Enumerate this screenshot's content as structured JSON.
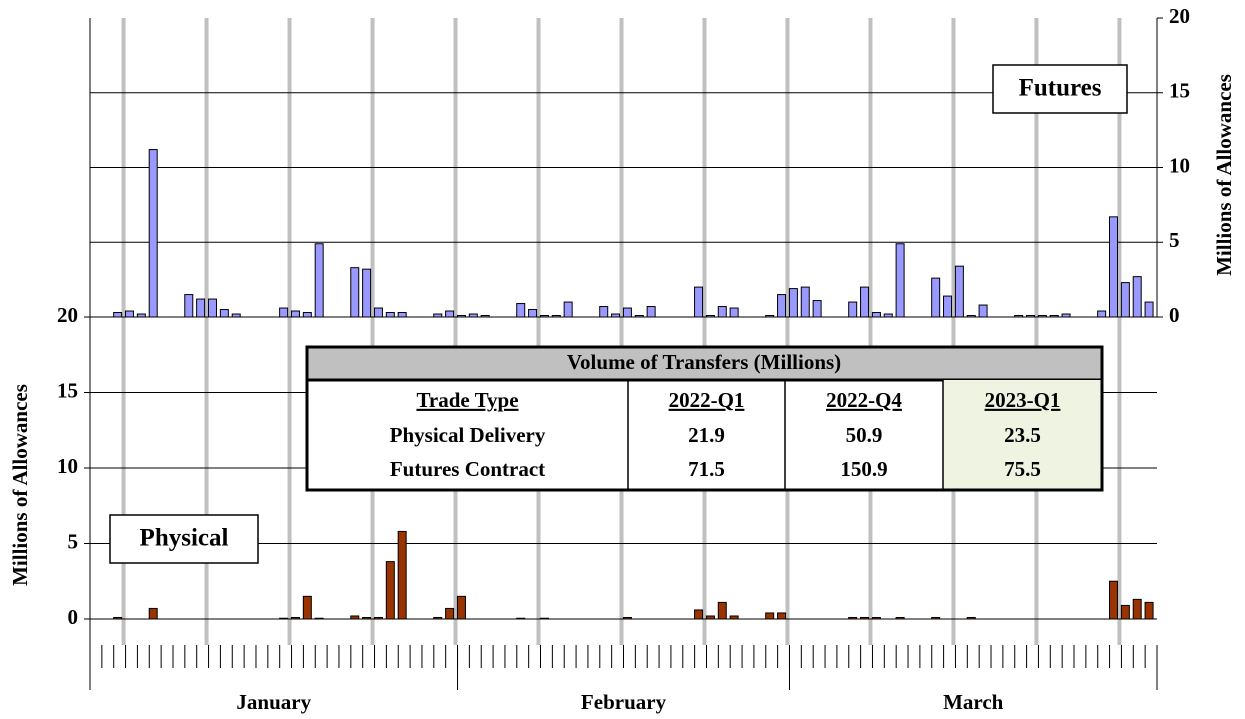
{
  "chart_data": {
    "type": "bar",
    "categories": [
      null,
      null,
      null,
      null,
      null,
      null,
      null,
      null,
      null,
      null,
      null,
      null,
      null,
      null,
      null,
      null,
      null,
      null,
      null,
      null,
      null,
      null,
      null,
      null,
      null,
      null,
      null,
      null,
      null,
      null,
      null,
      null,
      null,
      null,
      null,
      null,
      null,
      null,
      null,
      null,
      null,
      null,
      null,
      null,
      null,
      null,
      null,
      null,
      null,
      null,
      null,
      null,
      null,
      null,
      null,
      null,
      null,
      null,
      null,
      null,
      null,
      null,
      null,
      null,
      null,
      null,
      null,
      null,
      null,
      null,
      null,
      null,
      null,
      null,
      null,
      null,
      null,
      null,
      null,
      null,
      null,
      null,
      null,
      null,
      null,
      null,
      null,
      null,
      null,
      null
    ],
    "groups": [
      {
        "label": "January",
        "count": 31
      },
      {
        "label": "February",
        "count": 28
      },
      {
        "label": "March",
        "count": 31
      }
    ],
    "series": [
      {
        "name": "Futures",
        "color": "#9999ff",
        "axis": "y2",
        "values": [
          0,
          0,
          0.3,
          0.4,
          0.2,
          11.2,
          0,
          0,
          1.5,
          1.2,
          1.2,
          0.5,
          0.2,
          0,
          0,
          0,
          0.6,
          0.4,
          0.3,
          4.9,
          0,
          0,
          3.3,
          3.2,
          0.6,
          0.3,
          0.3,
          0,
          0,
          0.2,
          0.4,
          0.1,
          0.2,
          0.1,
          0,
          0,
          0.9,
          0.5,
          0.1,
          0.1,
          1.0,
          0,
          0,
          0.7,
          0.2,
          0.6,
          0.1,
          0.7,
          0,
          0,
          0,
          2.0,
          0.1,
          0.7,
          0.6,
          0,
          0,
          0.1,
          1.5,
          1.9,
          2.0,
          1.1,
          0,
          0,
          1.0,
          2.0,
          0.3,
          0.2,
          4.9,
          0,
          0,
          2.6,
          1.4,
          3.4,
          0.1,
          0.8,
          0,
          0,
          0.1,
          0.1,
          0.1,
          0.1,
          0.2,
          0,
          0,
          0.4,
          6.7,
          2.3,
          2.7,
          1.0
        ]
      },
      {
        "name": "Physical",
        "color": "#993300",
        "values": [
          0,
          0,
          0.1,
          0,
          0,
          0.7,
          0,
          0,
          0,
          0,
          0,
          0,
          0,
          0,
          0,
          0,
          0.05,
          0.1,
          1.5,
          0.05,
          0,
          0,
          0.2,
          0.1,
          0.1,
          3.8,
          5.8,
          0,
          0,
          0.1,
          0.7,
          1.5,
          0,
          0,
          0,
          0,
          0.05,
          0,
          0.05,
          0,
          0,
          0,
          0,
          0,
          0,
          0.1,
          0,
          0,
          0,
          0,
          0,
          0.6,
          0.2,
          1.1,
          0.2,
          0,
          0,
          0.4,
          0.4,
          0,
          0,
          0,
          0,
          0,
          0.1,
          0.1,
          0.1,
          0,
          0.1,
          0,
          0,
          0.1,
          0,
          0,
          0.1,
          0,
          0,
          0,
          0,
          0,
          0,
          0,
          0,
          0,
          0,
          0,
          2.5,
          0.9,
          1.3,
          1.1
        ]
      }
    ],
    "ylim": [
      0,
      20
    ],
    "yticks": [
      0,
      5,
      10,
      15,
      20
    ],
    "ylabel": "Millions of Allowances",
    "y2lim": [
      0,
      20
    ],
    "y2ticks": [
      0,
      5,
      10,
      15,
      20
    ],
    "y2label": "Millions of Allowances",
    "grid": true
  },
  "table": {
    "title": "Volume of Transfers (Millions)",
    "header": [
      "Trade Type",
      "2022-Q1",
      "2022-Q4",
      "2023-Q1"
    ],
    "rows": [
      [
        "Physical Delivery",
        21.9,
        50.9,
        23.5
      ],
      [
        "Futures Contract",
        71.5,
        150.9,
        75.5
      ]
    ]
  }
}
